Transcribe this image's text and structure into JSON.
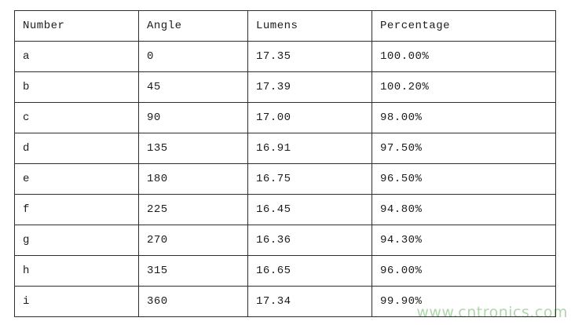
{
  "colors": {
    "border": "#2e2e2e",
    "text": "#1c1c1c",
    "background": "#ffffff",
    "watermark": "#b0d6ac"
  },
  "watermark": {
    "text": "www.cntronics.com"
  },
  "table": {
    "headers": [
      "Number",
      "Angle",
      "Lumens",
      "Percentage"
    ],
    "rows": [
      [
        "a",
        "0",
        "17.35",
        "100.00%"
      ],
      [
        "b",
        "45",
        "17.39",
        "100.20%"
      ],
      [
        "c",
        "90",
        "17.00",
        "98.00%"
      ],
      [
        "d",
        "135",
        "16.91",
        "97.50%"
      ],
      [
        "e",
        "180",
        "16.75",
        "96.50%"
      ],
      [
        "f",
        "225",
        "16.45",
        "94.80%"
      ],
      [
        "g",
        "270",
        "16.36",
        "94.30%"
      ],
      [
        "h",
        "315",
        "16.65",
        "96.00%"
      ],
      [
        "i",
        "360",
        "17.34",
        "99.90%"
      ]
    ]
  },
  "chart_data": {
    "type": "table",
    "columns": [
      "Number",
      "Angle",
      "Lumens",
      "Percentage"
    ],
    "rows": [
      {
        "number": "a",
        "angle": 0,
        "lumens": 17.35,
        "percentage": "100.00%"
      },
      {
        "number": "b",
        "angle": 45,
        "lumens": 17.39,
        "percentage": "100.20%"
      },
      {
        "number": "c",
        "angle": 90,
        "lumens": 17.0,
        "percentage": "98.00%"
      },
      {
        "number": "d",
        "angle": 135,
        "lumens": 16.91,
        "percentage": "97.50%"
      },
      {
        "number": "e",
        "angle": 180,
        "lumens": 16.75,
        "percentage": "96.50%"
      },
      {
        "number": "f",
        "angle": 225,
        "lumens": 16.45,
        "percentage": "94.80%"
      },
      {
        "number": "g",
        "angle": 270,
        "lumens": 16.36,
        "percentage": "94.30%"
      },
      {
        "number": "h",
        "angle": 315,
        "lumens": 16.65,
        "percentage": "96.00%"
      },
      {
        "number": "i",
        "angle": 360,
        "lumens": 17.34,
        "percentage": "99.90%"
      }
    ]
  }
}
